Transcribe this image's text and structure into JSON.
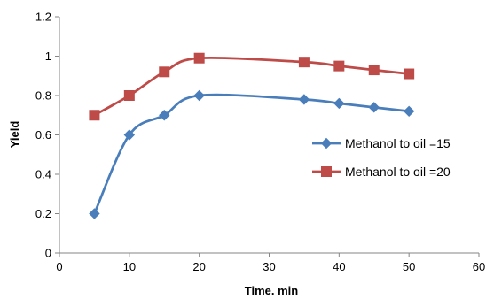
{
  "chart_data": {
    "type": "line",
    "title": "",
    "xlabel": "Time. min",
    "ylabel": "Yield",
    "xlim": [
      0,
      60
    ],
    "ylim": [
      0,
      1.2
    ],
    "xticks": [
      0,
      10,
      20,
      30,
      40,
      50,
      60
    ],
    "yticks": [
      0,
      0.2,
      0.4,
      0.6,
      0.8,
      1,
      1.2
    ],
    "xtick_labels": [
      "0",
      "10",
      "20",
      "30",
      "40",
      "50",
      "60"
    ],
    "ytick_labels": [
      "0",
      "0.2",
      "0.4",
      "0.6",
      "0.8",
      "1",
      "1.2"
    ],
    "grid": false,
    "smooth": true,
    "legend_position": "right",
    "series": [
      {
        "name": "Methanol to oil =15",
        "color": "#4A7EBB",
        "marker": "diamond",
        "x": [
          5,
          10,
          15,
          20,
          35,
          40,
          45,
          50
        ],
        "y": [
          0.2,
          0.6,
          0.7,
          0.8,
          0.78,
          0.76,
          0.74,
          0.72
        ]
      },
      {
        "name": "Methanol to oil =20",
        "color": "#BE4B48",
        "marker": "square",
        "x": [
          5,
          10,
          15,
          20,
          35,
          40,
          45,
          50
        ],
        "y": [
          0.7,
          0.8,
          0.92,
          0.99,
          0.97,
          0.95,
          0.93,
          0.91
        ]
      }
    ]
  }
}
